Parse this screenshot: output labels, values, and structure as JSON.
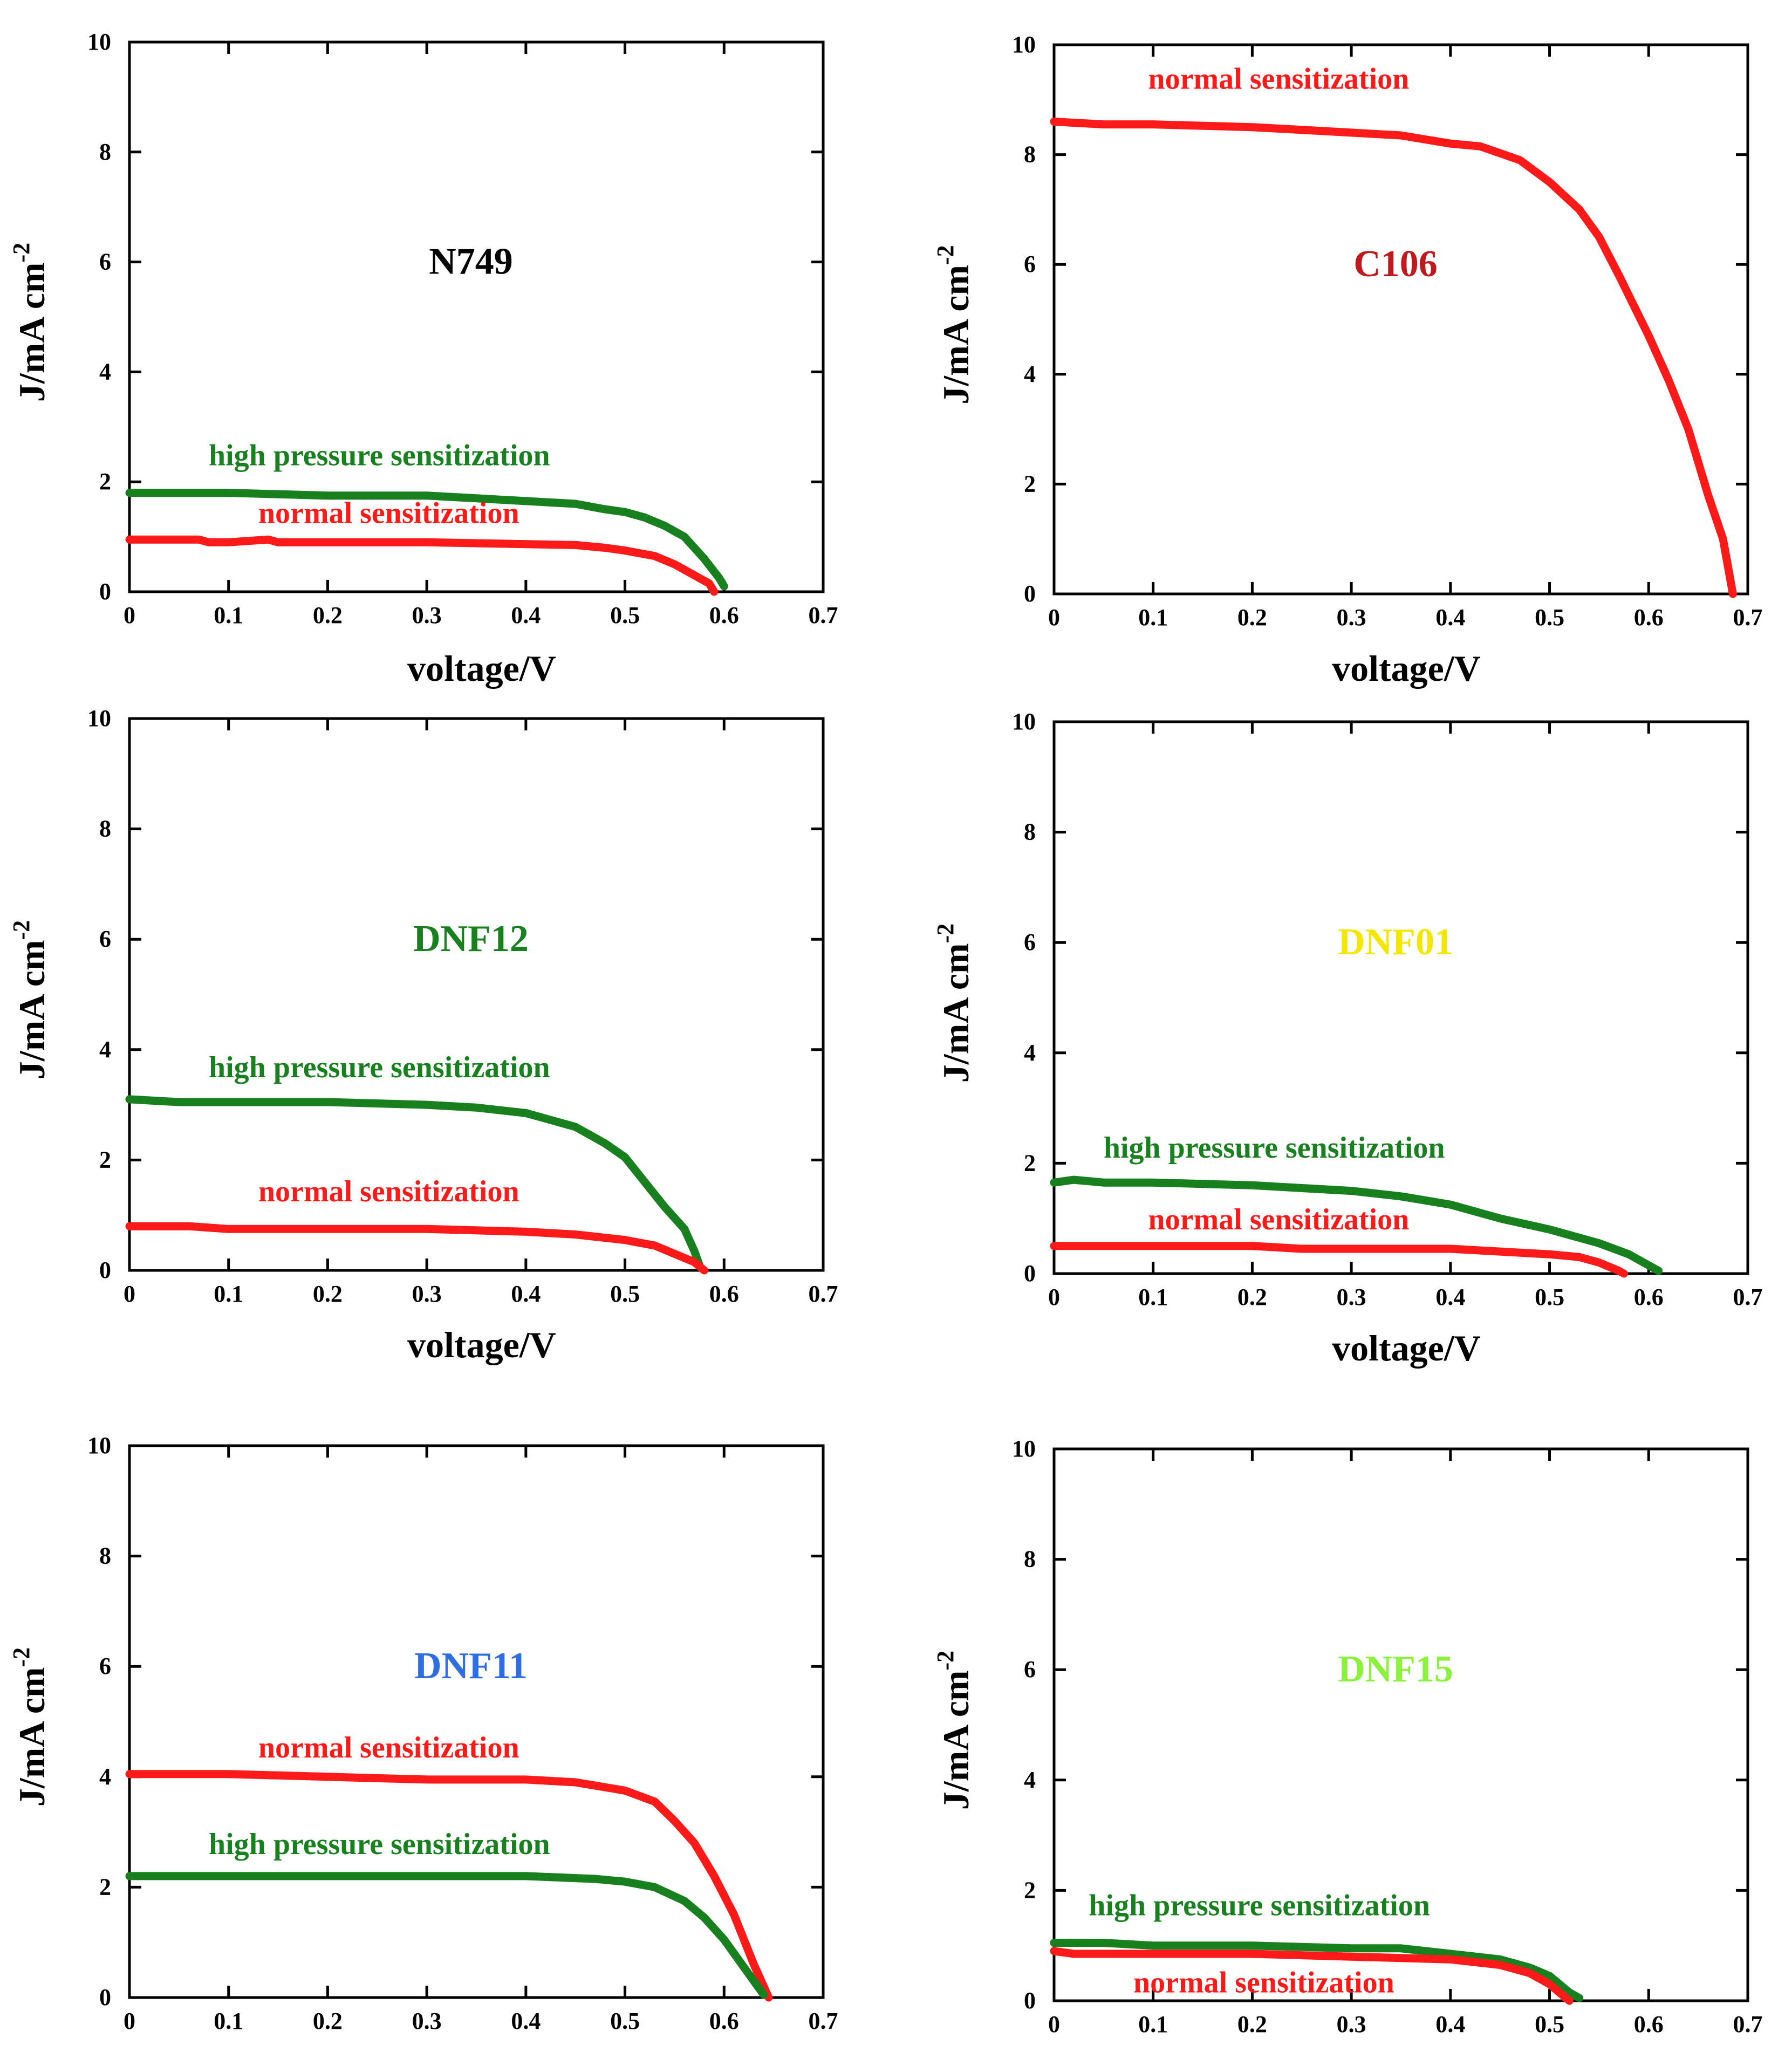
{
  "colors": {
    "red": "#ff1a1a",
    "green": "#18801f",
    "black": "#000000"
  },
  "chart_data": [
    {
      "type": "line",
      "title": "N749",
      "title_color": "#000000",
      "xlabel": "voltage/V",
      "ylabel": "J/mA cm",
      "ylabel_exp": "-2",
      "xlim": [
        0,
        0.7
      ],
      "ylim": [
        0,
        10
      ],
      "xticks": [
        "0",
        "0.1",
        "0.2",
        "0.3",
        "0.4",
        "0.5",
        "0.6",
        "0.7"
      ],
      "yticks": [
        "0",
        "2",
        "4",
        "6",
        "8",
        "10"
      ],
      "series": [
        {
          "name": "high pressure sensitization",
          "color": "#18801f",
          "label_anchor": [
            0.08,
            2.3
          ],
          "x": [
            0,
            0.1,
            0.2,
            0.3,
            0.35,
            0.4,
            0.45,
            0.48,
            0.5,
            0.52,
            0.54,
            0.56,
            0.58,
            0.595,
            0.6
          ],
          "y": [
            1.8,
            1.8,
            1.75,
            1.75,
            1.7,
            1.65,
            1.6,
            1.5,
            1.45,
            1.35,
            1.2,
            1.0,
            0.6,
            0.25,
            0.1
          ]
        },
        {
          "name": "normal sensitization",
          "color": "#ff1a1a",
          "label_anchor": [
            0.13,
            1.25
          ],
          "x": [
            0,
            0.07,
            0.08,
            0.1,
            0.14,
            0.15,
            0.3,
            0.45,
            0.48,
            0.5,
            0.53,
            0.55,
            0.57,
            0.585,
            0.59
          ],
          "y": [
            0.95,
            0.95,
            0.9,
            0.9,
            0.95,
            0.9,
            0.9,
            0.85,
            0.8,
            0.75,
            0.65,
            0.5,
            0.3,
            0.15,
            0.0
          ]
        }
      ]
    },
    {
      "type": "line",
      "title": "C106",
      "title_color": "#c0181c",
      "xlabel": "voltage/V",
      "ylabel": "J/mA cm",
      "ylabel_exp": "-2",
      "xlim": [
        0,
        0.7
      ],
      "ylim": [
        0,
        10
      ],
      "xticks": [
        "0",
        "0.1",
        "0.2",
        "0.3",
        "0.4",
        "0.5",
        "0.6",
        "0.7"
      ],
      "yticks": [
        "0",
        "2",
        "4",
        "6",
        "8",
        "10"
      ],
      "series": [
        {
          "name": "normal sensitization",
          "color": "#ff1a1a",
          "label_anchor": [
            0.095,
            9.2
          ],
          "x": [
            0,
            0.05,
            0.1,
            0.2,
            0.25,
            0.3,
            0.35,
            0.4,
            0.43,
            0.47,
            0.5,
            0.53,
            0.55,
            0.57,
            0.6,
            0.62,
            0.64,
            0.66,
            0.675,
            0.685
          ],
          "y": [
            8.6,
            8.55,
            8.55,
            8.5,
            8.45,
            8.4,
            8.35,
            8.2,
            8.15,
            7.9,
            7.5,
            7.0,
            6.5,
            5.8,
            4.7,
            3.9,
            3.0,
            1.8,
            1.0,
            0.0
          ]
        }
      ]
    },
    {
      "type": "line",
      "title": "DNF12",
      "title_color": "#18801f",
      "xlabel": "voltage/V",
      "ylabel": "J/mA cm",
      "ylabel_exp": "-2",
      "xlim": [
        0,
        0.7
      ],
      "ylim": [
        0,
        10
      ],
      "xticks": [
        "0",
        "0.1",
        "0.2",
        "0.3",
        "0.4",
        "0.5",
        "0.6",
        "0.7"
      ],
      "yticks": [
        "0",
        "2",
        "4",
        "6",
        "8",
        "10"
      ],
      "series": [
        {
          "name": "high pressure sensitization",
          "color": "#18801f",
          "label_anchor": [
            0.08,
            3.5
          ],
          "x": [
            0,
            0.05,
            0.1,
            0.2,
            0.3,
            0.35,
            0.4,
            0.45,
            0.48,
            0.5,
            0.52,
            0.54,
            0.56,
            0.57,
            0.575
          ],
          "y": [
            3.1,
            3.05,
            3.05,
            3.05,
            3.0,
            2.95,
            2.85,
            2.6,
            2.3,
            2.05,
            1.6,
            1.15,
            0.75,
            0.35,
            0.1
          ]
        },
        {
          "name": "normal sensitization",
          "color": "#ff1a1a",
          "label_anchor": [
            0.13,
            1.25
          ],
          "x": [
            0,
            0.06,
            0.1,
            0.2,
            0.3,
            0.4,
            0.45,
            0.5,
            0.53,
            0.55,
            0.57,
            0.58
          ],
          "y": [
            0.8,
            0.8,
            0.75,
            0.75,
            0.75,
            0.7,
            0.65,
            0.55,
            0.45,
            0.3,
            0.15,
            0.0
          ]
        }
      ]
    },
    {
      "type": "line",
      "title": "DNF01",
      "title_color": "#f5e600",
      "xlabel": "voltage/V",
      "ylabel": "J/mA cm",
      "ylabel_exp": "-2",
      "xlim": [
        0,
        0.7
      ],
      "ylim": [
        0,
        10
      ],
      "xticks": [
        "0",
        "0.1",
        "0.2",
        "0.3",
        "0.4",
        "0.5",
        "0.6",
        "0.7"
      ],
      "yticks": [
        "0",
        "2",
        "4",
        "6",
        "8",
        "10"
      ],
      "series": [
        {
          "name": "high pressure sensitization",
          "color": "#18801f",
          "label_anchor": [
            0.05,
            2.1
          ],
          "x": [
            0,
            0.02,
            0.05,
            0.1,
            0.2,
            0.3,
            0.35,
            0.4,
            0.45,
            0.5,
            0.55,
            0.58,
            0.6,
            0.61
          ],
          "y": [
            1.65,
            1.7,
            1.65,
            1.65,
            1.6,
            1.5,
            1.4,
            1.25,
            1.0,
            0.8,
            0.55,
            0.35,
            0.15,
            0.05
          ]
        },
        {
          "name": "normal sensitization",
          "color": "#ff1a1a",
          "label_anchor": [
            0.095,
            0.8
          ],
          "x": [
            0,
            0.1,
            0.2,
            0.25,
            0.3,
            0.4,
            0.45,
            0.5,
            0.53,
            0.55,
            0.57,
            0.575
          ],
          "y": [
            0.5,
            0.5,
            0.5,
            0.45,
            0.45,
            0.45,
            0.4,
            0.35,
            0.3,
            0.2,
            0.05,
            0.0
          ]
        }
      ]
    },
    {
      "type": "line",
      "title": "DNF11",
      "title_color": "#2f6ee0",
      "xlabel": "",
      "ylabel": "J/mA cm",
      "ylabel_exp": "-2",
      "xlim": [
        0,
        0.7
      ],
      "ylim": [
        0,
        10
      ],
      "xticks": [
        "0",
        "0.1",
        "0.2",
        "0.3",
        "0.4",
        "0.5",
        "0.6",
        "0.7"
      ],
      "yticks": [
        "0",
        "2",
        "4",
        "6",
        "8",
        "10"
      ],
      "series": [
        {
          "name": "normal sensitization",
          "color": "#ff1a1a",
          "label_anchor": [
            0.13,
            4.35
          ],
          "x": [
            0,
            0.1,
            0.2,
            0.3,
            0.4,
            0.45,
            0.5,
            0.53,
            0.55,
            0.57,
            0.59,
            0.61,
            0.63,
            0.645
          ],
          "y": [
            4.05,
            4.05,
            4.0,
            3.95,
            3.95,
            3.9,
            3.75,
            3.55,
            3.2,
            2.8,
            2.2,
            1.5,
            0.6,
            0.0
          ]
        },
        {
          "name": "high pressure sensitization",
          "color": "#18801f",
          "label_anchor": [
            0.08,
            2.6
          ],
          "x": [
            0,
            0.1,
            0.2,
            0.3,
            0.4,
            0.47,
            0.5,
            0.53,
            0.56,
            0.58,
            0.6,
            0.62,
            0.64
          ],
          "y": [
            2.2,
            2.2,
            2.2,
            2.2,
            2.2,
            2.15,
            2.1,
            2.0,
            1.75,
            1.45,
            1.05,
            0.55,
            0.05
          ]
        }
      ]
    },
    {
      "type": "line",
      "title": "DNF15",
      "title_color": "#8af23a",
      "xlabel": "",
      "ylabel": "J/mA cm",
      "ylabel_exp": "-2",
      "xlim": [
        0,
        0.7
      ],
      "ylim": [
        0,
        10
      ],
      "xticks": [
        "0",
        "0.1",
        "0.2",
        "0.3",
        "0.4",
        "0.5",
        "0.6",
        "0.7"
      ],
      "yticks": [
        "0",
        "2",
        "4",
        "6",
        "8",
        "10"
      ],
      "series": [
        {
          "name": "high pressure sensitization",
          "color": "#18801f",
          "label_anchor": [
            0.035,
            1.55
          ],
          "x": [
            0,
            0.05,
            0.1,
            0.2,
            0.3,
            0.35,
            0.4,
            0.45,
            0.48,
            0.5,
            0.51,
            0.52,
            0.53
          ],
          "y": [
            1.05,
            1.05,
            1.0,
            1.0,
            0.95,
            0.95,
            0.85,
            0.75,
            0.6,
            0.45,
            0.3,
            0.15,
            0.05
          ]
        },
        {
          "name": "normal sensitization",
          "color": "#ff1a1a",
          "label_anchor": [
            0.08,
            0.15
          ],
          "x": [
            0,
            0.02,
            0.05,
            0.1,
            0.2,
            0.3,
            0.4,
            0.45,
            0.48,
            0.5,
            0.51,
            0.52
          ],
          "y": [
            0.9,
            0.85,
            0.85,
            0.85,
            0.85,
            0.8,
            0.75,
            0.65,
            0.5,
            0.3,
            0.15,
            0.0
          ]
        }
      ]
    }
  ]
}
